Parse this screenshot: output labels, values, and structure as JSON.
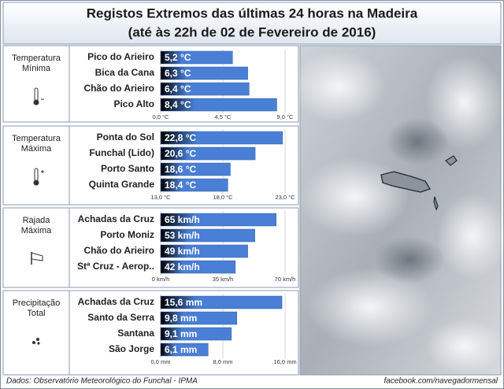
{
  "title": [
    "Registos Extremos das últimas 24 horas na Madeira",
    "(até às 22h de 02 de Fevereiro de 2016)"
  ],
  "footer": {
    "source": "Dados:  Observatório Meteorológico do Funchal - IPMA",
    "credit": "facebook.com/navegadormensal"
  },
  "chart_data": [
    {
      "type": "bar",
      "label": [
        "Temperatura",
        "Mínima"
      ],
      "color": "#4a7fd6",
      "categories": [
        "Pico do Arieiro",
        "Bica da Cana",
        "Chão do Arieiro",
        "Pico Alto"
      ],
      "values": [
        5.2,
        6.3,
        6.4,
        8.4
      ],
      "value_labels": [
        "5,2 °C",
        "6,3 °C",
        "6,4 °C",
        "8,4 °C"
      ],
      "xlim": [
        0,
        9
      ],
      "xticks": [
        {
          "value": 0,
          "label": "0,0 °C"
        },
        {
          "value": 4.5,
          "label": "4,5 °C"
        },
        {
          "value": 9,
          "label": "9,0 °C"
        }
      ],
      "grid": true
    },
    {
      "type": "bar",
      "label": [
        "Temperatura",
        "Máxima"
      ],
      "color": "#4a7fd6",
      "categories": [
        "Ponta do Sol",
        "Funchal (Lido)",
        "Porto Santo",
        "Quinta Grande"
      ],
      "values": [
        22.8,
        20.6,
        18.6,
        18.4
      ],
      "value_labels": [
        "22,8 °C",
        "20,6 °C",
        "18,6 °C",
        "18,4 °C"
      ],
      "xlim": [
        13,
        23
      ],
      "xticks": [
        {
          "value": 13,
          "label": "13,0 °C"
        },
        {
          "value": 18,
          "label": "18,0 °C"
        },
        {
          "value": 23,
          "label": "23,0 °C"
        }
      ],
      "grid": true
    },
    {
      "type": "bar",
      "label": [
        "Rajada",
        "Máxima"
      ],
      "color": "#4a7fd6",
      "categories": [
        "Achadas da Cruz",
        "Porto Moniz",
        "Chão do Arieiro",
        "Stª Cruz - Aerop.."
      ],
      "values": [
        65,
        53,
        49,
        42
      ],
      "value_labels": [
        "65 km/h",
        "53 km/h",
        "49 km/h",
        "42 km/h"
      ],
      "xlim": [
        0,
        70
      ],
      "xticks": [
        {
          "value": 0,
          "label": "0 km/h"
        },
        {
          "value": 35,
          "label": "35 km/h"
        },
        {
          "value": 70,
          "label": "70 km/h"
        }
      ],
      "grid": true
    },
    {
      "type": "bar",
      "label": [
        "Precipitação",
        "Total"
      ],
      "color": "#4a7fd6",
      "categories": [
        "Achadas da Cruz",
        "Santo da Serra",
        "Santana",
        "São Jorge"
      ],
      "values": [
        15.6,
        9.8,
        9.1,
        6.1
      ],
      "value_labels": [
        "15,6 mm",
        "9,8 mm",
        "9,1 mm",
        "6,1 mm"
      ],
      "xlim": [
        0,
        16
      ],
      "xticks": [
        {
          "value": 0,
          "label": "0,0 mm"
        },
        {
          "value": 8,
          "label": "8,0 mm"
        },
        {
          "value": 16,
          "label": "16,0 mm"
        }
      ],
      "grid": true
    }
  ]
}
